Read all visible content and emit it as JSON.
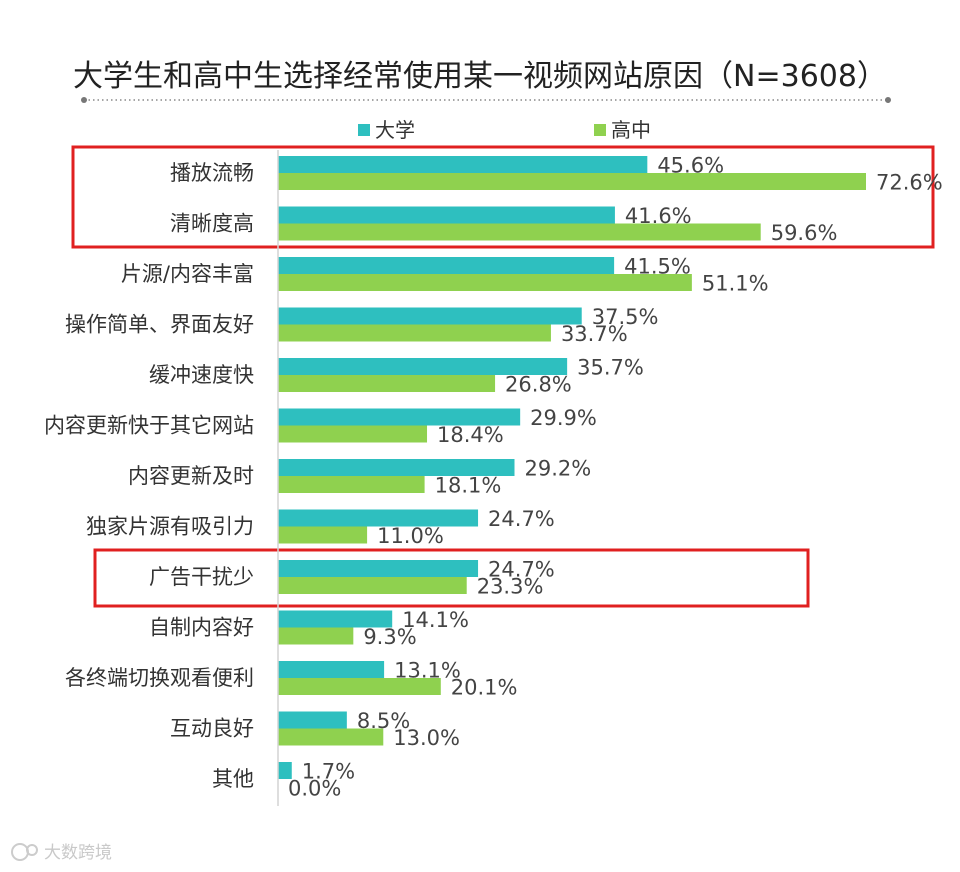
{
  "chart_data": {
    "type": "bar",
    "orientation": "horizontal",
    "title": "大学生和高中生选择经常使用某一视频网站原因（N=3608）",
    "categories": [
      "播放流畅",
      "清晰度高",
      "片源/内容丰富",
      "操作简单、界面友好",
      "缓冲速度快",
      "内容更新快于其它网站",
      "内容更新及时",
      "独家片源有吸引力",
      "广告干扰少",
      "自制内容好",
      "各终端切换观看便利",
      "互动良好",
      "其他"
    ],
    "series": [
      {
        "name": "大学",
        "color": "#2ebfbf",
        "values": [
          45.6,
          41.6,
          41.5,
          37.5,
          35.7,
          29.9,
          29.2,
          24.7,
          24.7,
          14.1,
          13.1,
          8.5,
          1.7
        ],
        "labels": [
          "45.6%",
          "41.6%",
          "41.5%",
          "37.5%",
          "35.7%",
          "29.9%",
          "29.2%",
          "24.7%",
          "24.7%",
          "14.1%",
          "13.1%",
          "8.5%",
          "1.7%"
        ]
      },
      {
        "name": "高中",
        "color": "#8fd14f",
        "values": [
          72.6,
          59.6,
          51.1,
          33.7,
          26.8,
          18.4,
          18.1,
          11.0,
          23.3,
          9.3,
          20.1,
          13.0,
          0.0
        ],
        "labels": [
          "72.6%",
          "59.6%",
          "51.1%",
          "33.7%",
          "26.8%",
          "18.4%",
          "18.1%",
          "11.0%",
          "23.3%",
          "9.3%",
          "20.1%",
          "13.0%",
          "0.0%"
        ]
      }
    ],
    "xlim": [
      0,
      100
    ],
    "grid": false,
    "legend_position": "top",
    "highlight_color": "#e02020",
    "highlighted_groups": [
      [
        0,
        1
      ],
      [
        8
      ]
    ]
  },
  "watermark": "大数跨境"
}
